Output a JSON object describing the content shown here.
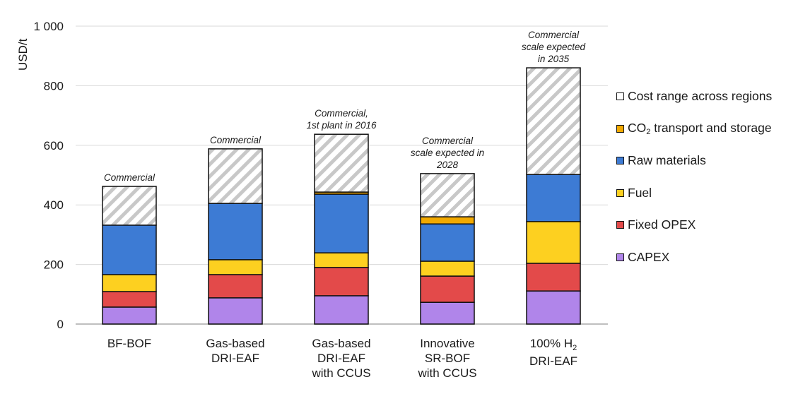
{
  "chart_data": {
    "type": "bar",
    "stacked": true,
    "title": "",
    "xlabel": "",
    "ylabel": "USD/t",
    "ylim": [
      0,
      1000
    ],
    "yticks": [
      0,
      200,
      400,
      600,
      800,
      1000
    ],
    "ytick_labels": [
      "0",
      "200",
      "400",
      "600",
      "800",
      "1 000"
    ],
    "grid": true,
    "legend_position": "right",
    "categories": [
      [
        "BF-BOF"
      ],
      [
        "Gas-based",
        "DRI-EAF"
      ],
      [
        "Gas-based",
        "DRI-EAF",
        "with CCUS"
      ],
      [
        "Innovative",
        "SR-BOF",
        "with CCUS"
      ],
      [
        "100% H₂",
        "DRI-EAF"
      ]
    ],
    "annotations": [
      [
        "Commercial"
      ],
      [
        "Commercial"
      ],
      [
        "Commercial,",
        "1st plant in 2016"
      ],
      [
        "Commercial",
        "scale expected in",
        "2028"
      ],
      [
        "Commercial",
        "scale expected",
        "in 2035"
      ]
    ],
    "series": [
      {
        "name": "CAPEX",
        "color": "#b085ea",
        "values": [
          57,
          88,
          95,
          73,
          111
        ]
      },
      {
        "name": "Fixed OPEX",
        "color": "#e34a4a",
        "values": [
          52,
          78,
          95,
          88,
          93
        ]
      },
      {
        "name": "Fuel",
        "color": "#fdd020",
        "values": [
          57,
          50,
          49,
          50,
          140
        ]
      },
      {
        "name": "Raw materials",
        "color": "#3d7bd4",
        "values": [
          166,
          189,
          197,
          125,
          158
        ]
      },
      {
        "name": "CO2 transport and storage",
        "color": "#f2a900",
        "values": [
          0,
          0,
          7,
          24,
          0
        ]
      },
      {
        "name": "Cost range across regions",
        "color": "hatched",
        "values": [
          130,
          183,
          194,
          145,
          358
        ]
      }
    ],
    "legend": [
      {
        "label": "Cost range across regions",
        "color": "#ffffff"
      },
      {
        "label": "CO",
        "sub": "2",
        "label_after": " transport and storage",
        "color": "#f2a900"
      },
      {
        "label": "Raw materials",
        "color": "#3d7bd4"
      },
      {
        "label": "Fuel",
        "color": "#fdd020"
      },
      {
        "label": "Fixed OPEX",
        "color": "#e34a4a"
      },
      {
        "label": "CAPEX",
        "color": "#b085ea"
      }
    ]
  }
}
